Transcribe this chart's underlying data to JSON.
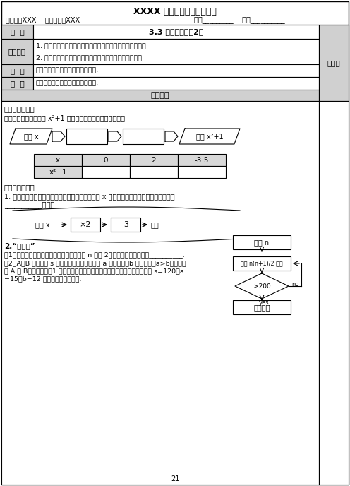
{
  "title": "XXXX 中学七年级数学导学案",
  "header_left": "主备人：XXX    教案审核：XXX",
  "header_right": "班级_________    姓名__________",
  "page_num": "21",
  "bg_color": "#ffffff",
  "course_label": "课  题",
  "course_content": "3.3 代数式的値（2）",
  "goal_label": "学习目标",
  "goal_line1": "1. 能读懂计算程序图，会按照规定的程序计算代数式的値。",
  "goal_line2": "2. 在计算代数式的値得过程中，感受数量的变化及联系。",
  "key_label": "重  点",
  "key_content": "会按照规定的程序计算代数式的値.",
  "diff_label": "难  点",
  "diff_content": "会按照规定的程序计算代数式的値.",
  "flow_header": "教学流程",
  "note_col": "随笔栏",
  "sec1_title": "一、自学检测：",
  "sec1_text": "请你设计出计算代数式 x²+1 的値的计算程序，再填写下表：",
  "input_x": "输入 x",
  "output_x2": "输出 x²+1",
  "tbl_x": "x",
  "tbl_x2": "x²+1",
  "tbl_v0": "0",
  "tbl_v2": "2",
  "tbl_v35": "-3.5",
  "sec2_title": "二、探究活动：",
  "sec2_text1": "1. 如图是数値转换机的示意图，如果输入的数字用 x 表示，那么输出的数字可以用代数式",
  "sec2_text2": "___________表示。",
  "mach_in": "输入 x",
  "mach_op1": "×2",
  "mach_op2": "-3",
  "mach_out": "输出",
  "sec3_title": "2.“做一做”",
  "sec3_t1": "（1）按右边图示的程序计算，若开始输入的 n 値为 2，则最后输出的结果是__________.",
  "sec3_t2a": "（2）A、B 两地相距 s 千米，甲、乙两人分别以 a 千米／时、b 千米／时（a>b）的速度",
  "sec3_t2b": "从 A 到 B，如果甲先走1 小时，试用代数式表示甲比乙早到的时间．再求：当 s=120，a",
  "sec3_t2c": "=15，b=12 时，这一代数式的値.",
  "fc_in_n": "输入 n",
  "fc_calc": "计算 n(n+1)/2 的値",
  "fc_cond": ">200",
  "fc_yes": "yes",
  "fc_no": "no",
  "fc_out": "输出结果"
}
